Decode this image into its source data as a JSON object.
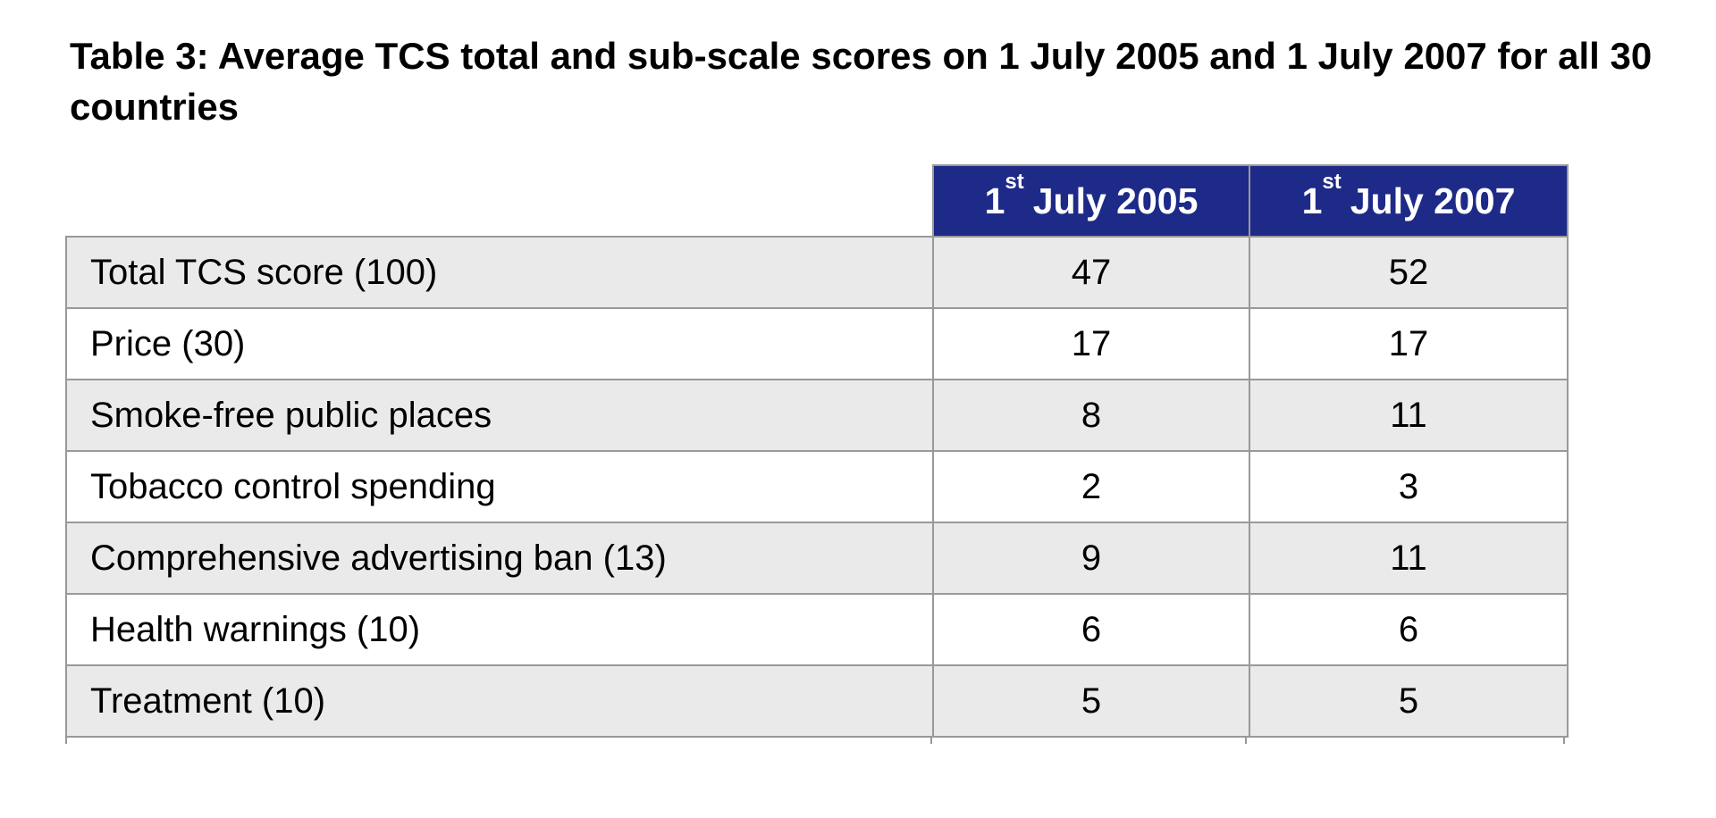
{
  "title": "Table 3: Average TCS total and sub-scale scores on 1 July 2005 and 1 July 2007 for all 30 countries",
  "table": {
    "header": {
      "col_2005": {
        "prefix": "1",
        "sup": "st",
        "rest": "July 2005"
      },
      "col_2007": {
        "prefix": "1",
        "sup": "st",
        "rest": "July 2007"
      }
    },
    "rows": [
      {
        "label": "Total TCS score (100)",
        "values": [
          "47",
          "52"
        ]
      },
      {
        "label": "Price (30)",
        "values": [
          "17",
          "17"
        ]
      },
      {
        "label": "Smoke-free public places",
        "values": [
          "8",
          "11"
        ]
      },
      {
        "label": "Tobacco control spending",
        "values": [
          "2",
          "3"
        ]
      },
      {
        "label": "Comprehensive advertising ban (13)",
        "values": [
          "9",
          "11"
        ]
      },
      {
        "label": "Health warnings (10)",
        "values": [
          "6",
          "6"
        ]
      },
      {
        "label": "Treatment (10)",
        "values": [
          "5",
          "5"
        ]
      }
    ]
  },
  "colors": {
    "header_bg": "#1E2A87",
    "header_text": "#FFFFFF",
    "row_alt_bg": "#EAEAEA",
    "row_bg": "#FFFFFF",
    "border": "#999999",
    "text": "#000000"
  },
  "chart_data": {
    "type": "table",
    "title": "Table 3: Average TCS total and sub-scale scores on 1 July 2005 and 1 July 2007 for all 30 countries",
    "columns": [
      "",
      "1st July 2005",
      "1st July 2007"
    ],
    "rows": [
      [
        "Total TCS score (100)",
        47,
        52
      ],
      [
        "Price (30)",
        17,
        17
      ],
      [
        "Smoke-free public places",
        8,
        11
      ],
      [
        "Tobacco control spending",
        2,
        3
      ],
      [
        "Comprehensive advertising ban (13)",
        9,
        11
      ],
      [
        "Health warnings (10)",
        6,
        6
      ],
      [
        "Treatment (10)",
        5,
        5
      ]
    ]
  }
}
